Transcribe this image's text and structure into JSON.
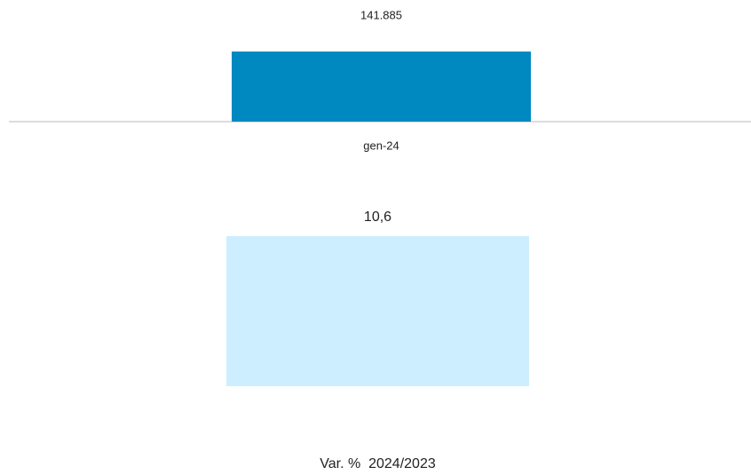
{
  "chart_data": [
    {
      "type": "bar",
      "categories": [
        "gen-24"
      ],
      "values": [
        141885
      ],
      "value_labels": [
        "141.885"
      ],
      "color": "#0088c0",
      "ylim": [
        0,
        160000
      ]
    },
    {
      "type": "bar",
      "categories": [
        "Var. %  2024/2023"
      ],
      "values": [
        10.6
      ],
      "value_labels": [
        "10,6"
      ],
      "color": "#cceeff",
      "ylim": [
        0,
        12
      ]
    }
  ]
}
